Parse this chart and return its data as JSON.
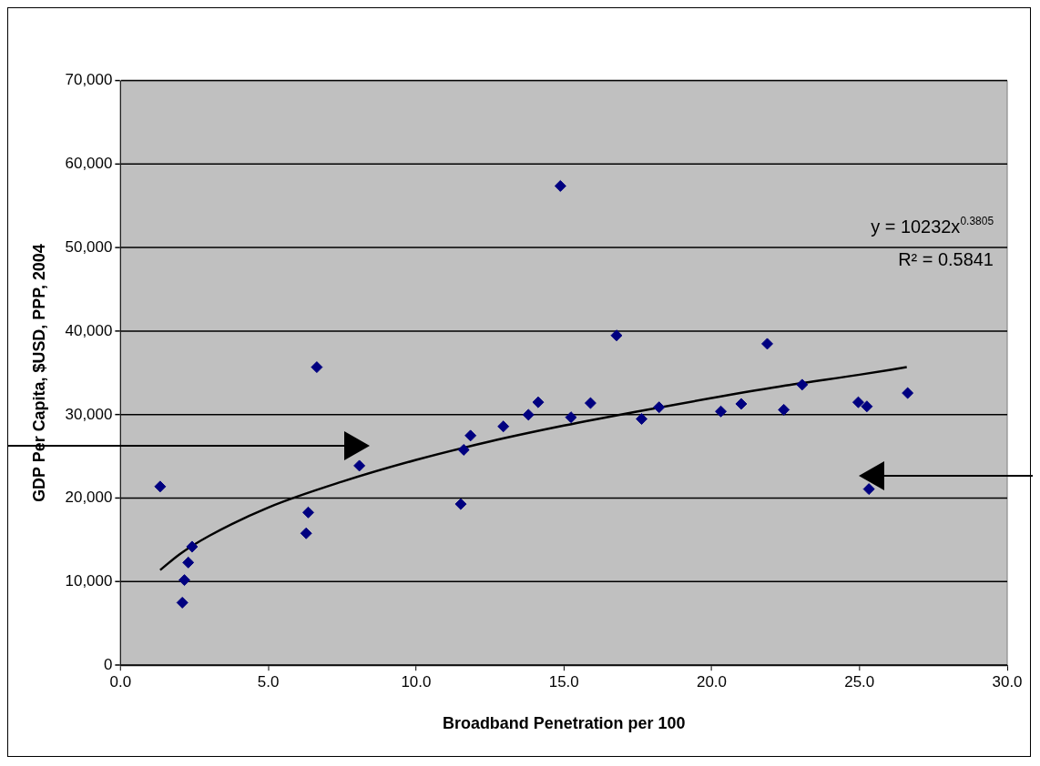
{
  "chart_data": {
    "type": "scatter",
    "xlabel": "Broadband Penetration per 100",
    "ylabel": "GDP Per Capita, $USD, PPP, 2004",
    "xlim": [
      0,
      30
    ],
    "xticks": [
      {
        "value": 0,
        "label": "0.0"
      },
      {
        "value": 5,
        "label": "5.0"
      },
      {
        "value": 10,
        "label": "10.0"
      },
      {
        "value": 15,
        "label": "15.0"
      },
      {
        "value": 20,
        "label": "20.0"
      },
      {
        "value": 25,
        "label": "25.0"
      },
      {
        "value": 30,
        "label": "30.0"
      }
    ],
    "ylim": [
      0,
      70000
    ],
    "yticks": [
      0,
      {
        "value": 10000,
        "label": "10,000"
      },
      {
        "value": 20000,
        "label": "20,000"
      },
      {
        "value": 30000,
        "label": "30,000"
      },
      {
        "value": 40000,
        "label": "40,000"
      },
      {
        "value": 50000,
        "label": "50,000"
      },
      {
        "value": 60000,
        "label": "60,000"
      },
      {
        "value": 70000,
        "label": "70,000"
      }
    ],
    "grid": "y",
    "legend": false,
    "annotations": [
      "y = 10232x$^{0.3805}$",
      "R² = 0.5841"
    ],
    "series": [
      {
        "type": "scatter",
        "color": "#000080",
        "marker": "diamond",
        "x": [
          1.34,
          2.09,
          2.16,
          2.29,
          2.42,
          6.28,
          6.35,
          6.64,
          8.08,
          11.51,
          11.61,
          11.84,
          12.95,
          13.8,
          14.13,
          14.88,
          15.24,
          15.9,
          16.78,
          17.63,
          18.22,
          20.31,
          21.0,
          21.88,
          22.44,
          23.06,
          24.96,
          25.25,
          25.32,
          26.63
        ],
        "values": [
          21400,
          7500,
          10200,
          12300,
          14200,
          15800,
          18300,
          35700,
          23900,
          19300,
          25800,
          27500,
          28600,
          30000,
          31500,
          57400,
          29700,
          31400,
          39500,
          29500,
          30900,
          30400,
          31300,
          38500,
          30600,
          33600,
          31500,
          31000,
          21100,
          32600
        ]
      },
      {
        "type": "line",
        "color": "#000000",
        "marker": "none",
        "x": [
          1.34,
          2,
          3,
          5,
          7.5,
          10,
          12.5,
          15,
          17.5,
          20,
          22.5,
          25,
          26.6
        ],
        "values": [
          11400,
          13300,
          15500,
          18900,
          22000,
          24600,
          26800,
          28700,
          30400,
          32000,
          33500,
          34800,
          35700
        ]
      }
    ]
  }
}
